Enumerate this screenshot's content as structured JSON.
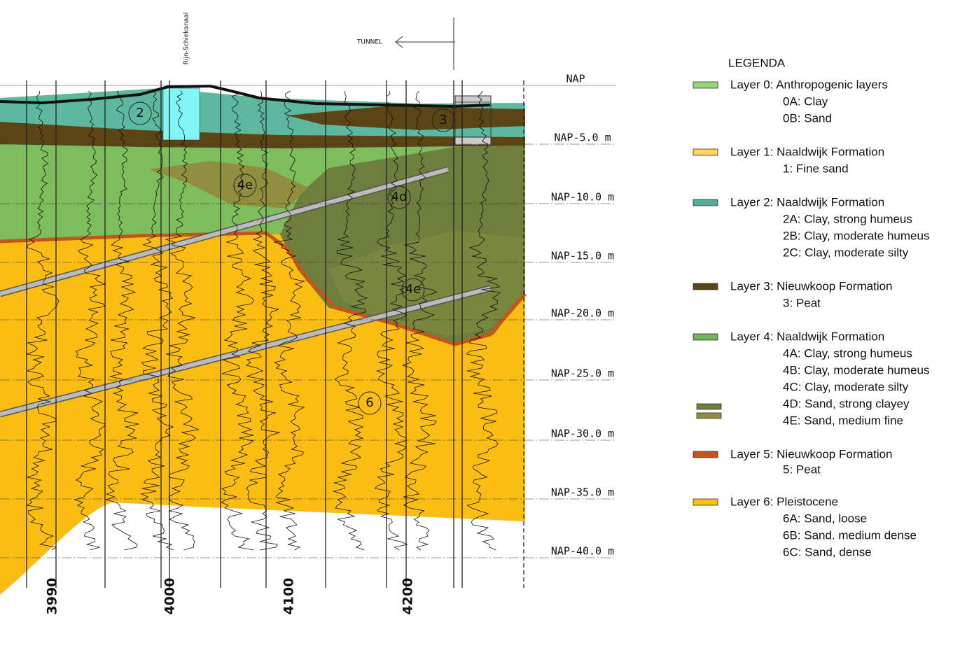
{
  "labels": {
    "canal": "Rijn-Schiekanaal",
    "tunnel": "TUNNEL"
  },
  "depth_labels": [
    "NAP",
    "NAP-5.0 m",
    "NAP-10.0 m",
    "NAP-15.0 m",
    "NAP-20.0 m",
    "NAP-25.0 m",
    "NAP-30.0 m",
    "NAP-35.0 m",
    "NAP-40.0 m"
  ],
  "distance_labels": [
    "3990",
    "4000",
    "4100",
    "4200"
  ],
  "zone_labels": [
    "2",
    "3",
    "4e",
    "4d",
    "4e",
    "6"
  ],
  "legend": {
    "title": "LEGENDA",
    "items": [
      {
        "label": "Layer 0:  Anthropogenic layers",
        "sub": [
          "0A: Clay",
          "0B: Sand"
        ]
      },
      {
        "label": "Layer 1:  Naaldwijk Formation",
        "sub": [
          "1: Fine sand"
        ]
      },
      {
        "label": "Layer 2:  Naaldwijk Formation",
        "sub": [
          "2A: Clay, strong humeus",
          "2B: Clay, moderate humeus",
          "2C: Clay, moderate silty"
        ]
      },
      {
        "label": "Layer 3:  Nieuwkoop Formation",
        "sub": [
          "3: Peat"
        ]
      },
      {
        "label": "Layer 4:  Naaldwijk Formation",
        "sub": [
          "4A: Clay, strong humeus",
          "4B: Clay, moderate humeus",
          "4C: Clay, moderate silty",
          "4D: Sand, strong clayey",
          "4E: Sand, medium fine"
        ]
      },
      {
        "label": "Layer 5: Nieuwkoop Formation",
        "sub": [
          "5: Peat"
        ]
      },
      {
        "label": "Layer 6:  Pleistocene",
        "sub": [
          "6A: Sand, loose",
          "6B: Sand. medium dense",
          "6C: Sand, dense"
        ]
      }
    ]
  }
}
